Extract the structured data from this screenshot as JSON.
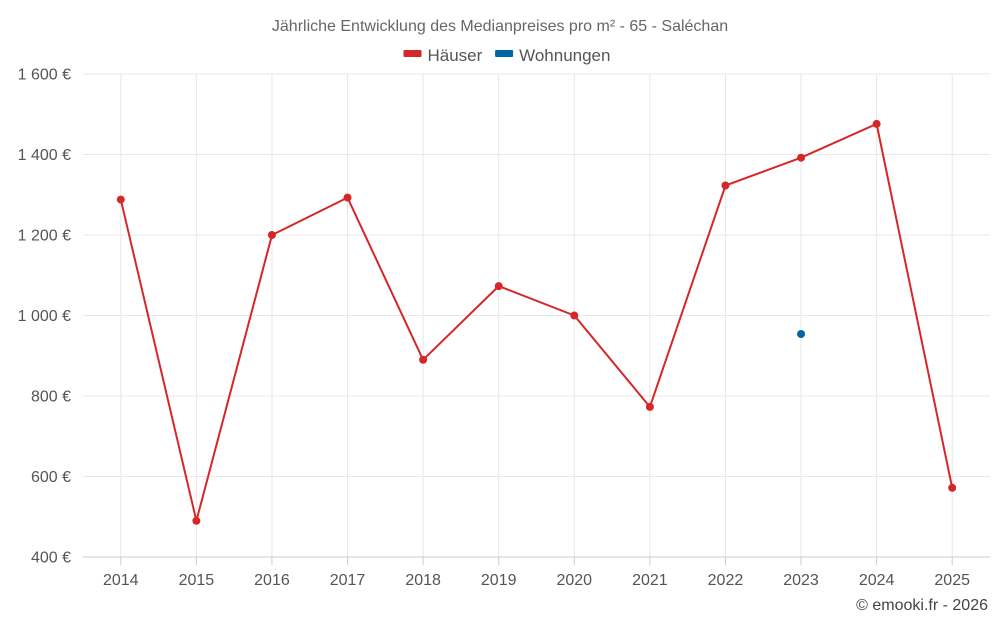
{
  "chart_data": {
    "type": "line",
    "title": "Jährliche Entwicklung des Medianpreises pro m² - 65 - Saléchan",
    "categories": [
      "2014",
      "2015",
      "2016",
      "2017",
      "2018",
      "2019",
      "2020",
      "2021",
      "2022",
      "2023",
      "2024",
      "2025"
    ],
    "series": [
      {
        "name": "Häuser",
        "color": "#d62728",
        "values": [
          1288,
          490,
          1200,
          1293,
          890,
          1073,
          1000,
          773,
          1323,
          1392,
          1476,
          572
        ]
      },
      {
        "name": "Wohnungen",
        "color": "#0066a6",
        "values": [
          null,
          null,
          null,
          null,
          null,
          null,
          null,
          null,
          null,
          954,
          null,
          null
        ]
      }
    ],
    "ylim": [
      400,
      1600
    ],
    "yticks": [
      400,
      600,
      800,
      1000,
      1200,
      1400,
      1600
    ],
    "ytick_labels": [
      "400 €",
      "600 €",
      "800 €",
      "1 000 €",
      "1 200 €",
      "1 400 €",
      "1 600 €"
    ],
    "legend_position": "top-center",
    "grid": true
  },
  "credit": "© emooki.fr - 2026"
}
